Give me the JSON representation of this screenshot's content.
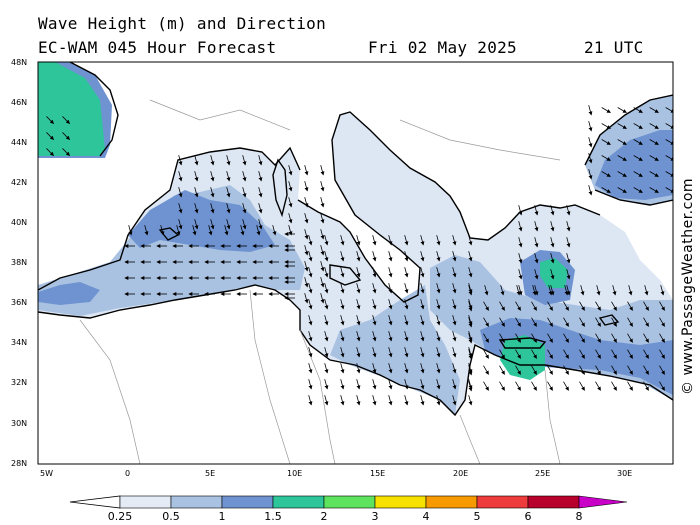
{
  "header": {
    "title": "Wave Height (m) and Direction",
    "model": "EC-WAM 045 Hour Forecast",
    "date": "Fri 02 May 2025",
    "time": "21 UTC"
  },
  "credit": "© www.PassageWeather.com",
  "axes": {
    "lat_labels": [
      "48N",
      "46N",
      "44N",
      "42N",
      "40N",
      "38N",
      "36N",
      "34N",
      "32N",
      "30N",
      "28N"
    ],
    "lon_labels": [
      "5W",
      "0",
      "5E",
      "10E",
      "15E",
      "20E",
      "25E",
      "30E"
    ]
  },
  "colorbar": {
    "labels": [
      "0.25",
      "0.5",
      "1",
      "1.5",
      "2",
      "3",
      "4",
      "5",
      "6",
      "8"
    ],
    "colors": [
      "#e4ebf5",
      "#a9c2e2",
      "#6e93d0",
      "#2ec59a",
      "#5ee35e",
      "#f7e100",
      "#f79a00",
      "#ee3b3b",
      "#b8002c",
      "#c800c8"
    ]
  },
  "colors": {
    "sea_light": "#dde6f3",
    "sea_mid": "#a9c2e2",
    "sea_dark": "#6e93d0",
    "sea_green": "#2ec59a",
    "coast": "#000000",
    "border": "#9a9a9a"
  }
}
